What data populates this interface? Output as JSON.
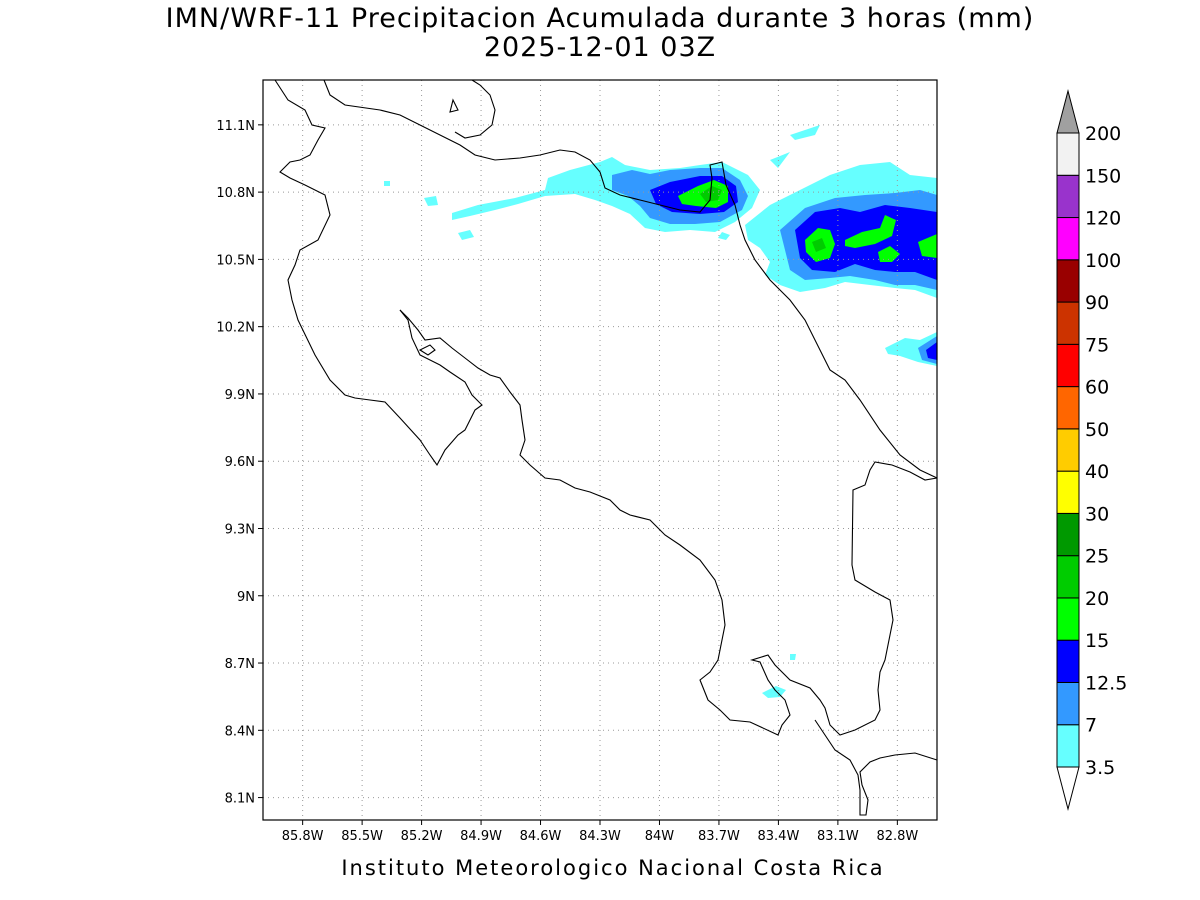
{
  "title": {
    "line1": "IMN/WRF-11 Precipitacion Acumulada durante 3 horas (mm)",
    "line2": "2025-12-01 03Z"
  },
  "footer": "Instituto Meteorologico Nacional Costa Rica",
  "map": {
    "lon_range": [
      -86.0,
      -82.6
    ],
    "lat_range": [
      8.0,
      11.3
    ],
    "lon_ticks": [
      {
        "v": -85.8,
        "label": "85.8W"
      },
      {
        "v": -85.5,
        "label": "85.5W"
      },
      {
        "v": -85.2,
        "label": "85.2W"
      },
      {
        "v": -84.9,
        "label": "84.9W"
      },
      {
        "v": -84.6,
        "label": "84.6W"
      },
      {
        "v": -84.3,
        "label": "84.3W"
      },
      {
        "v": -84.0,
        "label": "84W"
      },
      {
        "v": -83.7,
        "label": "83.7W"
      },
      {
        "v": -83.4,
        "label": "83.4W"
      },
      {
        "v": -83.1,
        "label": "83.1W"
      },
      {
        "v": -82.8,
        "label": "82.8W"
      }
    ],
    "lat_ticks": [
      {
        "v": 11.1,
        "label": "11.1N"
      },
      {
        "v": 10.8,
        "label": "10.8N"
      },
      {
        "v": 10.5,
        "label": "10.5N"
      },
      {
        "v": 10.2,
        "label": "10.2N"
      },
      {
        "v": 9.9,
        "label": "9.9N"
      },
      {
        "v": 9.6,
        "label": "9.6N"
      },
      {
        "v": 9.3,
        "label": "9.3N"
      },
      {
        "v": 9.0,
        "label": "9N"
      },
      {
        "v": 8.7,
        "label": "8.7N"
      },
      {
        "v": 8.4,
        "label": "8.4N"
      },
      {
        "v": 8.1,
        "label": "8.1N"
      }
    ],
    "gridlines": true,
    "basemap": "coastline-and-borders"
  },
  "colorbar": {
    "labels": [
      "3.5",
      "7",
      "12.5",
      "15",
      "20",
      "25",
      "30",
      "40",
      "50",
      "60",
      "75",
      "90",
      "100",
      "120",
      "150",
      "200"
    ],
    "colors": [
      "#66ffff",
      "#3399ff",
      "#0000ff",
      "#00ff00",
      "#00cc00",
      "#009900",
      "#ffff00",
      "#ffcc00",
      "#ff6600",
      "#ff0000",
      "#cc3300",
      "#990000",
      "#ff00ff",
      "#9933cc",
      "#f2f2f2"
    ],
    "over_color": "#a0a0a0",
    "under_color": "#ffffff"
  }
}
